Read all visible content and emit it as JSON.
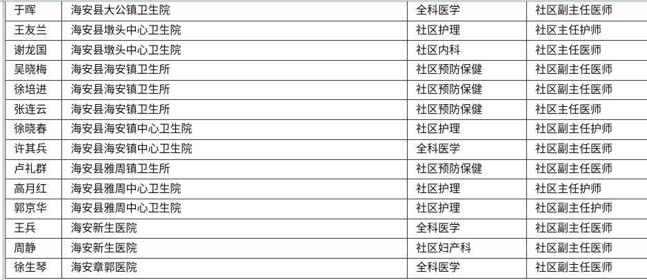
{
  "rows": [
    [
      "于晖",
      "海安县大公镇卫生院",
      "全科医学",
      "社区副主任医师"
    ],
    [
      "王友兰",
      "海安县墩头中心卫生院",
      "社区护理",
      "社区主任护师"
    ],
    [
      "谢龙国",
      "海安县墩头中心卫生院",
      "社区内科",
      "社区主任医师"
    ],
    [
      "吴晓梅",
      "海安县海安镇卫生所",
      "社区预防保健",
      "社区副主任医师"
    ],
    [
      "徐培进",
      "海安县海安镇卫生所",
      "社区预防保健",
      "社区副主任医师"
    ],
    [
      "张连云",
      "海安县海安镇卫生所",
      "社区预防保健",
      "社区主任医师"
    ],
    [
      "徐晓春",
      "海安县海安镇中心卫生院",
      "社区护理",
      "社区副主任护师"
    ],
    [
      "许其兵",
      "海安县海安镇中心卫生院",
      "全科医学",
      "社区副主任医师"
    ],
    [
      "卢礼群",
      "海安县雅周镇卫生所",
      "社区预防保健",
      "社区副主任医师"
    ],
    [
      "高月红",
      "海安县雅周中心卫生院",
      "社区护理",
      "社区主任护师"
    ],
    [
      "郭京华",
      "海安县雅周中心卫生院",
      "社区护理",
      "社区副主任护师"
    ],
    [
      "王兵",
      "海安新生医院",
      "全科医学",
      "社区副主任医师"
    ],
    [
      "周静",
      "海安新生医院",
      "社区妇产科",
      "社区副主任医师"
    ],
    [
      "徐生琴",
      "海安章郭医院",
      "全科医学",
      "社区副主任医师"
    ]
  ]
}
